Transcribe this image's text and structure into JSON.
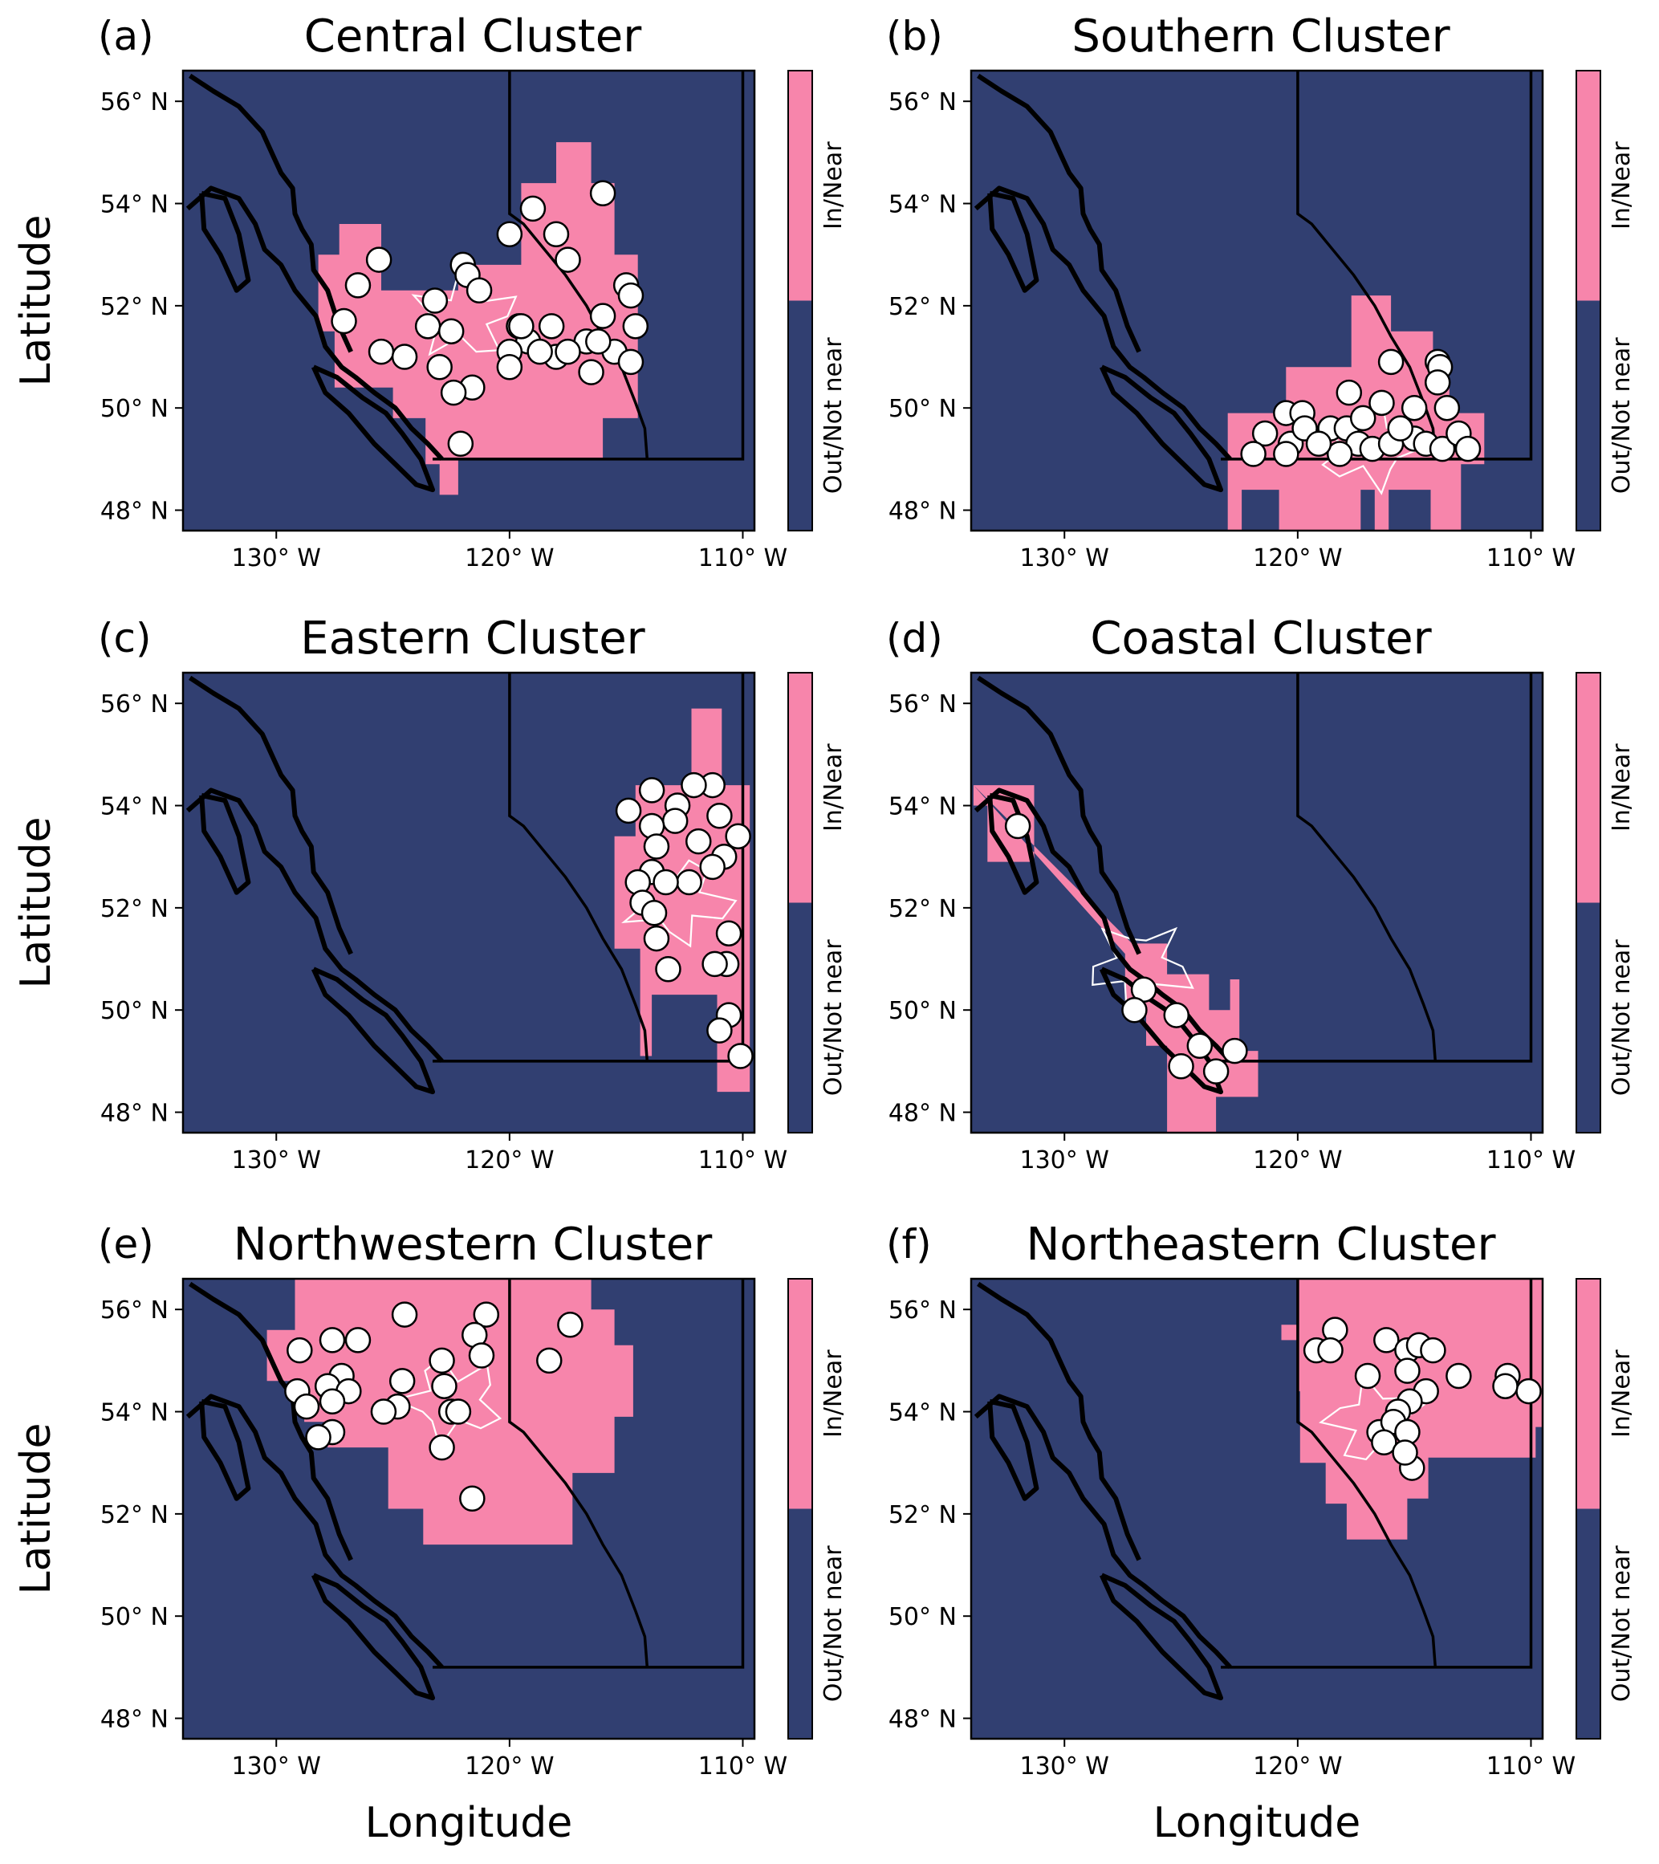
{
  "figure": {
    "ylabel": "Latitude",
    "xlabel": "Longitude",
    "lat_ticks": [
      "56° N",
      "54° N",
      "52° N",
      "50° N",
      "48° N"
    ],
    "lon_ticks": [
      "130° W",
      "120° W",
      "110° W"
    ],
    "colorbar": {
      "labels": [
        "In/Near",
        "Out/Not near"
      ],
      "colors": {
        "in_near": "#f785ab",
        "out_not_near": "#313f71"
      }
    },
    "colors": {
      "ocean_land_background": "#313f71",
      "in_near": "#f785ab",
      "coastline": "#000000",
      "basin_outline": "#ffffff",
      "station_fill": "#ffffff",
      "station_edge": "#000000"
    }
  },
  "map_data": {
    "extent_deg": {
      "lon": [
        -134,
        -109.5
      ],
      "lat": [
        47.6,
        56.6
      ]
    },
    "panels": [
      {
        "letter": "(a)",
        "title": "Central Cluster",
        "stations": [
          [
            -116,
            54.2
          ],
          [
            -119,
            53.9
          ],
          [
            -120,
            53.4
          ],
          [
            -118,
            53.4
          ],
          [
            -117.5,
            52.9
          ],
          [
            -122,
            52.8
          ],
          [
            -121.8,
            52.6
          ],
          [
            -121.3,
            52.3
          ],
          [
            -125.6,
            52.9
          ],
          [
            -126.5,
            52.4
          ],
          [
            -123.2,
            52.1
          ],
          [
            -115,
            52.4
          ],
          [
            -114.8,
            52.2
          ],
          [
            -127.1,
            51.7
          ],
          [
            -123.5,
            51.6
          ],
          [
            -122.5,
            51.5
          ],
          [
            -119.6,
            51.6
          ],
          [
            -116,
            51.8
          ],
          [
            -114.6,
            51.6
          ],
          [
            -116.7,
            51.3
          ],
          [
            -118.2,
            51.6
          ],
          [
            -119.2,
            51.3
          ],
          [
            -125.5,
            51.1
          ],
          [
            -124.5,
            51
          ],
          [
            -123,
            50.8
          ],
          [
            -121.6,
            50.4
          ],
          [
            -120,
            51.1
          ],
          [
            -120,
            50.8
          ],
          [
            -118,
            51
          ],
          [
            -116.5,
            50.7
          ],
          [
            -115.5,
            51.1
          ],
          [
            -114.8,
            50.9
          ],
          [
            -122.4,
            50.3
          ],
          [
            -122.1,
            49.3
          ],
          [
            -117.5,
            51.1
          ],
          [
            -119.5,
            51.6
          ],
          [
            -118.7,
            51.1
          ],
          [
            -116.2,
            51.3
          ]
        ],
        "in_near_cells": [
          [
            -117.5,
            52,
            55.2
          ],
          [
            -119,
            51.5,
            54.5
          ],
          [
            -122,
            51.5,
            54
          ],
          [
            -128,
            52,
            53.2
          ],
          [
            -124,
            51,
            52.3
          ],
          [
            -128,
            51,
            53
          ],
          [
            -124,
            49.3,
            50.3
          ],
          [
            -122.7,
            48.3,
            49.5
          ],
          [
            -114.5,
            49.8,
            53.2
          ]
        ]
      },
      {
        "letter": "(b)",
        "title": "Southern Cluster",
        "stations": [
          [
            -116,
            50.9
          ],
          [
            -114,
            50.9
          ],
          [
            -113.9,
            50.8
          ],
          [
            -114,
            50.5
          ],
          [
            -113.6,
            50
          ],
          [
            -117.8,
            50.3
          ],
          [
            -116.4,
            50.1
          ],
          [
            -115,
            50
          ],
          [
            -120.5,
            49.9
          ],
          [
            -119.8,
            49.9
          ],
          [
            -121.4,
            49.5
          ],
          [
            -120.3,
            49.3
          ],
          [
            -120.5,
            49.1
          ],
          [
            -121.9,
            49.1
          ],
          [
            -119.7,
            49.6
          ],
          [
            -118.6,
            49.6
          ],
          [
            -117.9,
            49.6
          ],
          [
            -117.4,
            49.3
          ],
          [
            -116.8,
            49.2
          ],
          [
            -116,
            49.3
          ],
          [
            -115,
            49.4
          ],
          [
            -114.5,
            49.3
          ],
          [
            -113.8,
            49.2
          ],
          [
            -113.1,
            49.5
          ],
          [
            -112.7,
            49.2
          ],
          [
            -118.2,
            49.1
          ],
          [
            -119.1,
            49.3
          ],
          [
            -117.2,
            49.8
          ],
          [
            -115.6,
            49.6
          ]
        ],
        "in_near_cells": []
      },
      {
        "letter": "(c)",
        "title": "Eastern Cluster",
        "stations": [
          [
            -111.3,
            54.4
          ],
          [
            -112.1,
            54.4
          ],
          [
            -113.9,
            54.3
          ],
          [
            -112.8,
            54
          ],
          [
            -112.9,
            53.7
          ],
          [
            -114.9,
            53.9
          ],
          [
            -113.9,
            53.6
          ],
          [
            -111,
            53.8
          ],
          [
            -110.2,
            53.4
          ],
          [
            -111.9,
            53.3
          ],
          [
            -113.7,
            53.2
          ],
          [
            -110.8,
            53
          ],
          [
            -111.3,
            52.8
          ],
          [
            -113.9,
            52.7
          ],
          [
            -114.5,
            52.5
          ],
          [
            -112.3,
            52.5
          ],
          [
            -113.3,
            52.5
          ],
          [
            -114.3,
            52.1
          ],
          [
            -113.8,
            51.9
          ],
          [
            -113.7,
            51.4
          ],
          [
            -110.6,
            51.5
          ],
          [
            -113.2,
            50.8
          ],
          [
            -110.7,
            50.9
          ],
          [
            -111.2,
            50.9
          ],
          [
            -110.6,
            49.9
          ],
          [
            -111,
            49.6
          ],
          [
            -110.1,
            49.1
          ]
        ],
        "in_near_cells": []
      },
      {
        "letter": "(d)",
        "title": "Coastal Cluster",
        "stations": [
          [
            -132,
            53.6
          ],
          [
            -126.6,
            50.4
          ],
          [
            -127,
            50
          ],
          [
            -125.2,
            49.9
          ],
          [
            -124.2,
            49.3
          ],
          [
            -125,
            48.9
          ],
          [
            -123.5,
            48.8
          ],
          [
            -122.7,
            49.2
          ]
        ],
        "in_near_cells": []
      },
      {
        "letter": "(e)",
        "title": "Northwestern Cluster",
        "stations": [
          [
            -121,
            55.9
          ],
          [
            -124.5,
            55.9
          ],
          [
            -117.4,
            55.7
          ],
          [
            -121.5,
            55.5
          ],
          [
            -127.6,
            55.4
          ],
          [
            -126.5,
            55.4
          ],
          [
            -121.2,
            55.1
          ],
          [
            -118.3,
            55
          ],
          [
            -122.9,
            55
          ],
          [
            -129,
            55.2
          ],
          [
            -127.2,
            54.7
          ],
          [
            -124.6,
            54.6
          ],
          [
            -129.1,
            54.4
          ],
          [
            -127.8,
            54.5
          ],
          [
            -126.9,
            54.4
          ],
          [
            -122.8,
            54.5
          ],
          [
            -127.6,
            54.2
          ],
          [
            -128.7,
            54.1
          ],
          [
            -124.8,
            54.1
          ],
          [
            -125.4,
            54
          ],
          [
            -122.5,
            54
          ],
          [
            -122.2,
            54
          ],
          [
            -127.6,
            53.6
          ],
          [
            -128.2,
            53.5
          ],
          [
            -122.9,
            53.3
          ],
          [
            -121.6,
            52.3
          ]
        ],
        "in_near_cells": []
      },
      {
        "letter": "(f)",
        "title": "Northeastern Cluster",
        "stations": [
          [
            -118.4,
            55.6
          ],
          [
            -119.2,
            55.2
          ],
          [
            -118.6,
            55.2
          ],
          [
            -116.2,
            55.4
          ],
          [
            -115.3,
            55.2
          ],
          [
            -114.8,
            55.3
          ],
          [
            -114.2,
            55.2
          ],
          [
            -117,
            54.7
          ],
          [
            -115.3,
            54.8
          ],
          [
            -113.1,
            54.7
          ],
          [
            -111,
            54.7
          ],
          [
            -110.1,
            54.4
          ],
          [
            -111.1,
            54.5
          ],
          [
            -114.5,
            54.4
          ],
          [
            -115.2,
            54.2
          ],
          [
            -115.7,
            54
          ],
          [
            -116.5,
            53.6
          ],
          [
            -115.9,
            53.8
          ],
          [
            -115.3,
            53.6
          ],
          [
            -116.3,
            53.4
          ],
          [
            -115.1,
            52.9
          ],
          [
            -115.4,
            53.2
          ]
        ],
        "in_near_cells": []
      }
    ]
  }
}
